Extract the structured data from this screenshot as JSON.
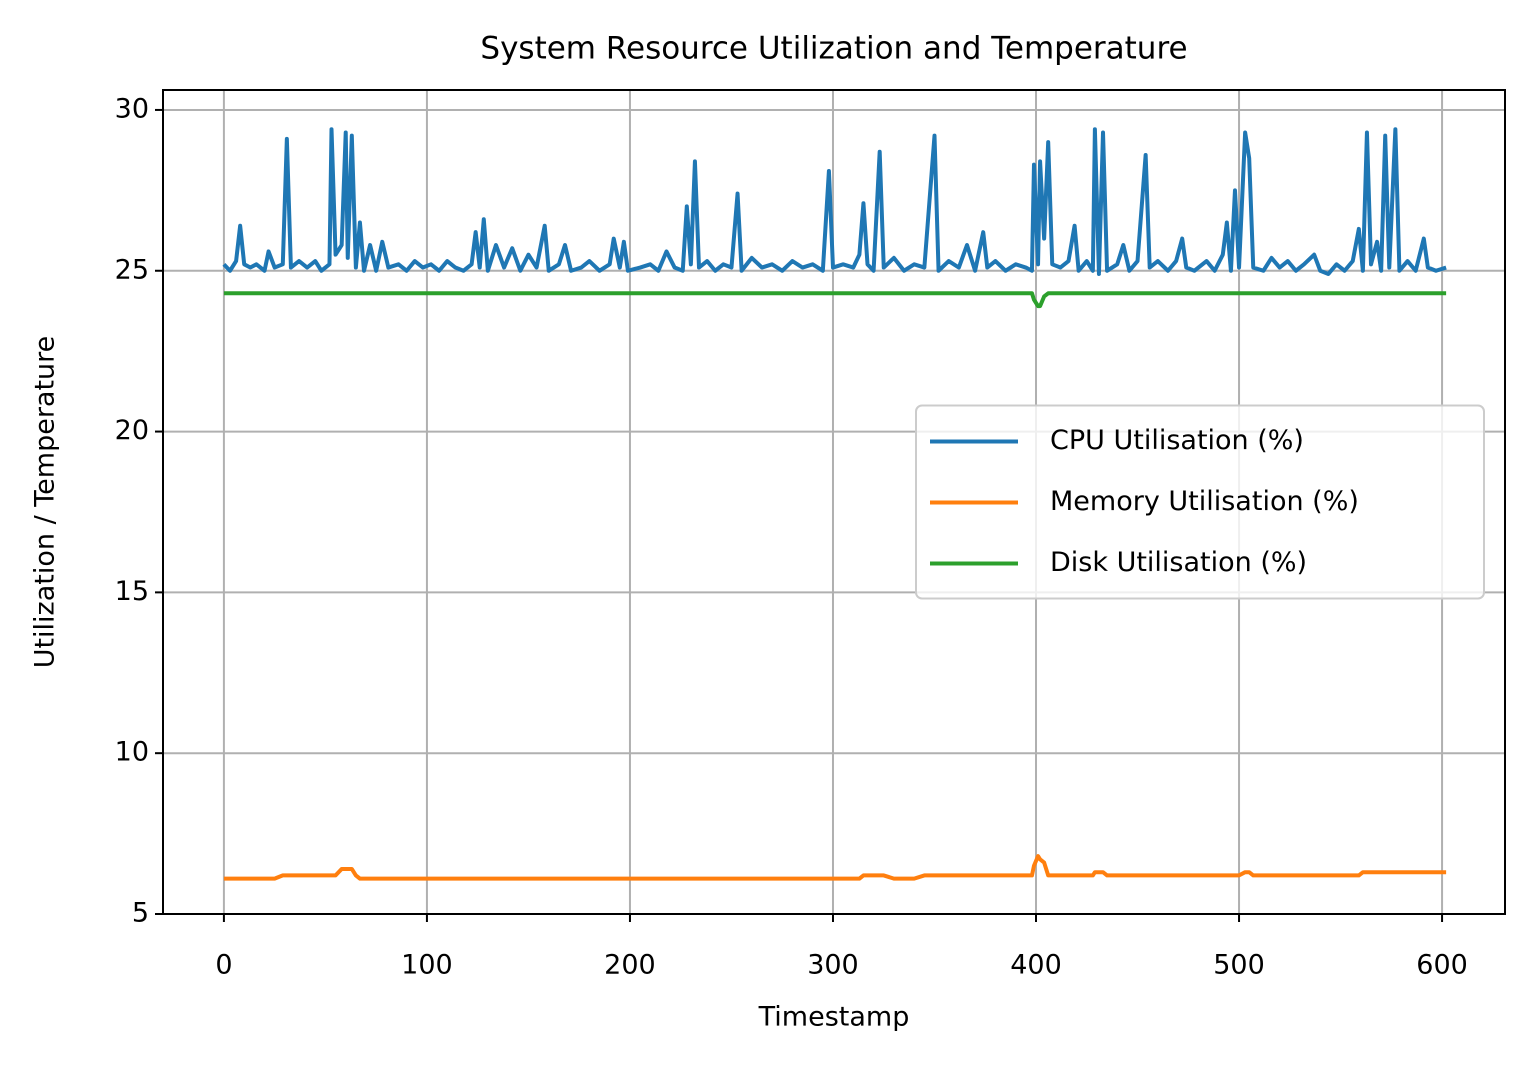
{
  "chart_data": {
    "type": "line",
    "title": "System Resource Utilization and Temperature",
    "xlabel": "Timestamp",
    "ylabel": "Utilization / Temperature",
    "x": [
      0,
      3,
      6,
      8,
      10,
      13,
      16,
      20,
      22,
      25,
      29,
      31,
      33,
      37,
      41,
      45,
      48,
      52,
      53,
      55,
      58,
      60,
      61,
      63,
      65,
      67,
      69,
      72,
      75,
      78,
      81,
      86,
      90,
      94,
      98,
      102,
      106,
      110,
      114,
      118,
      122,
      124,
      126,
      128,
      130,
      134,
      138,
      142,
      146,
      150,
      154,
      158,
      160,
      165,
      168,
      171,
      176,
      180,
      185,
      190,
      192,
      195,
      197,
      199,
      205,
      210,
      214,
      218,
      222,
      226,
      228,
      230,
      232,
      234,
      238,
      242,
      246,
      250,
      253,
      255,
      260,
      265,
      270,
      275,
      280,
      285,
      290,
      295,
      298,
      300,
      305,
      310,
      313,
      315,
      317,
      320,
      323,
      325,
      330,
      335,
      340,
      345,
      350,
      352,
      357,
      362,
      366,
      370,
      374,
      376,
      380,
      385,
      390,
      395,
      398,
      399,
      401,
      402,
      404,
      406,
      408,
      412,
      416,
      419,
      421,
      425,
      428,
      429,
      431,
      433,
      435,
      440,
      443,
      446,
      450,
      454,
      456,
      460,
      465,
      469,
      472,
      474,
      478,
      484,
      488,
      492,
      494,
      496,
      498,
      500,
      503,
      505,
      507,
      512,
      516,
      520,
      524,
      528,
      532,
      537,
      540,
      544,
      548,
      552,
      556,
      559,
      561,
      563,
      565,
      568,
      570,
      572,
      574,
      577,
      579,
      583,
      587,
      591,
      593,
      597,
      602
    ],
    "series": [
      {
        "name": "CPU Utilisation (%)",
        "color": "#1f77b4",
        "values": [
          25.2,
          25.0,
          25.3,
          26.4,
          25.2,
          25.1,
          25.2,
          25.0,
          25.6,
          25.1,
          25.2,
          29.1,
          25.1,
          25.3,
          25.1,
          25.3,
          25.0,
          25.2,
          29.4,
          25.5,
          25.8,
          29.3,
          25.4,
          29.2,
          25.1,
          26.5,
          25.0,
          25.8,
          25.0,
          25.9,
          25.1,
          25.2,
          25.0,
          25.3,
          25.1,
          25.2,
          25.0,
          25.3,
          25.1,
          25.0,
          25.2,
          26.2,
          25.1,
          26.6,
          25.0,
          25.8,
          25.1,
          25.7,
          25.0,
          25.5,
          25.1,
          26.4,
          25.0,
          25.2,
          25.8,
          25.0,
          25.1,
          25.3,
          25.0,
          25.2,
          26.0,
          25.1,
          25.9,
          25.0,
          25.1,
          25.2,
          25.0,
          25.6,
          25.1,
          25.0,
          27.0,
          25.2,
          28.4,
          25.1,
          25.3,
          25.0,
          25.2,
          25.1,
          27.4,
          25.0,
          25.4,
          25.1,
          25.2,
          25.0,
          25.3,
          25.1,
          25.2,
          25.0,
          28.1,
          25.1,
          25.2,
          25.1,
          25.5,
          27.1,
          25.2,
          25.0,
          28.7,
          25.1,
          25.4,
          25.0,
          25.2,
          25.1,
          29.2,
          25.0,
          25.3,
          25.1,
          25.8,
          25.0,
          26.2,
          25.1,
          25.3,
          25.0,
          25.2,
          25.1,
          25.0,
          28.3,
          25.2,
          28.4,
          26.0,
          29.0,
          25.2,
          25.1,
          25.3,
          26.4,
          25.0,
          25.3,
          25.0,
          29.4,
          24.9,
          29.3,
          25.0,
          25.2,
          25.8,
          25.0,
          25.3,
          28.6,
          25.1,
          25.3,
          25.0,
          25.3,
          26.0,
          25.1,
          25.0,
          25.3,
          25.0,
          25.5,
          26.5,
          25.0,
          27.5,
          25.1,
          29.3,
          28.5,
          25.1,
          25.0,
          25.4,
          25.1,
          25.3,
          25.0,
          25.2,
          25.5,
          25.0,
          24.9,
          25.2,
          25.0,
          25.3,
          26.3,
          25.0,
          29.3,
          25.2,
          25.9,
          25.0,
          29.2,
          25.1,
          29.4,
          25.0,
          25.3,
          25.0,
          26.0,
          25.1,
          25.0,
          25.1
        ]
      },
      {
        "name": "Memory Utilisation (%)",
        "color": "#ff7f0e",
        "values": [
          6.1,
          6.1,
          6.1,
          6.1,
          6.1,
          6.1,
          6.1,
          6.1,
          6.1,
          6.1,
          6.2,
          6.2,
          6.2,
          6.2,
          6.2,
          6.2,
          6.2,
          6.2,
          6.2,
          6.2,
          6.4,
          6.4,
          6.4,
          6.4,
          6.2,
          6.1,
          6.1,
          6.1,
          6.1,
          6.1,
          6.1,
          6.1,
          6.1,
          6.1,
          6.1,
          6.1,
          6.1,
          6.1,
          6.1,
          6.1,
          6.1,
          6.1,
          6.1,
          6.1,
          6.1,
          6.1,
          6.1,
          6.1,
          6.1,
          6.1,
          6.1,
          6.1,
          6.1,
          6.1,
          6.1,
          6.1,
          6.1,
          6.1,
          6.1,
          6.1,
          6.1,
          6.1,
          6.1,
          6.1,
          6.1,
          6.1,
          6.1,
          6.1,
          6.1,
          6.1,
          6.1,
          6.1,
          6.1,
          6.1,
          6.1,
          6.1,
          6.1,
          6.1,
          6.1,
          6.1,
          6.1,
          6.1,
          6.1,
          6.1,
          6.1,
          6.1,
          6.1,
          6.1,
          6.1,
          6.1,
          6.1,
          6.1,
          6.1,
          6.2,
          6.2,
          6.2,
          6.2,
          6.2,
          6.1,
          6.1,
          6.1,
          6.2,
          6.2,
          6.2,
          6.2,
          6.2,
          6.2,
          6.2,
          6.2,
          6.2,
          6.2,
          6.2,
          6.2,
          6.2,
          6.2,
          6.5,
          6.8,
          6.7,
          6.6,
          6.2,
          6.2,
          6.2,
          6.2,
          6.2,
          6.2,
          6.2,
          6.2,
          6.3,
          6.3,
          6.3,
          6.2,
          6.2,
          6.2,
          6.2,
          6.2,
          6.2,
          6.2,
          6.2,
          6.2,
          6.2,
          6.2,
          6.2,
          6.2,
          6.2,
          6.2,
          6.2,
          6.2,
          6.2,
          6.2,
          6.2,
          6.3,
          6.3,
          6.2,
          6.2,
          6.2,
          6.2,
          6.2,
          6.2,
          6.2,
          6.2,
          6.2,
          6.2,
          6.2,
          6.2,
          6.2,
          6.2,
          6.3,
          6.3,
          6.3,
          6.3,
          6.3,
          6.3,
          6.3,
          6.3,
          6.3,
          6.3,
          6.3,
          6.3,
          6.3,
          6.3,
          6.3
        ]
      },
      {
        "name": "Disk Utilisation (%)",
        "color": "#2ca02c",
        "values": [
          24.3,
          24.3,
          24.3,
          24.3,
          24.3,
          24.3,
          24.3,
          24.3,
          24.3,
          24.3,
          24.3,
          24.3,
          24.3,
          24.3,
          24.3,
          24.3,
          24.3,
          24.3,
          24.3,
          24.3,
          24.3,
          24.3,
          24.3,
          24.3,
          24.3,
          24.3,
          24.3,
          24.3,
          24.3,
          24.3,
          24.3,
          24.3,
          24.3,
          24.3,
          24.3,
          24.3,
          24.3,
          24.3,
          24.3,
          24.3,
          24.3,
          24.3,
          24.3,
          24.3,
          24.3,
          24.3,
          24.3,
          24.3,
          24.3,
          24.3,
          24.3,
          24.3,
          24.3,
          24.3,
          24.3,
          24.3,
          24.3,
          24.3,
          24.3,
          24.3,
          24.3,
          24.3,
          24.3,
          24.3,
          24.3,
          24.3,
          24.3,
          24.3,
          24.3,
          24.3,
          24.3,
          24.3,
          24.3,
          24.3,
          24.3,
          24.3,
          24.3,
          24.3,
          24.3,
          24.3,
          24.3,
          24.3,
          24.3,
          24.3,
          24.3,
          24.3,
          24.3,
          24.3,
          24.3,
          24.3,
          24.3,
          24.3,
          24.3,
          24.3,
          24.3,
          24.3,
          24.3,
          24.3,
          24.3,
          24.3,
          24.3,
          24.3,
          24.3,
          24.3,
          24.3,
          24.3,
          24.3,
          24.3,
          24.3,
          24.3,
          24.3,
          24.3,
          24.3,
          24.3,
          24.3,
          24.1,
          23.9,
          23.9,
          24.2,
          24.3,
          24.3,
          24.3,
          24.3,
          24.3,
          24.3,
          24.3,
          24.3,
          24.3,
          24.3,
          24.3,
          24.3,
          24.3,
          24.3,
          24.3,
          24.3,
          24.3,
          24.3,
          24.3,
          24.3,
          24.3,
          24.3,
          24.3,
          24.3,
          24.3,
          24.3,
          24.3,
          24.3,
          24.3,
          24.3,
          24.3,
          24.3,
          24.3,
          24.3,
          24.3,
          24.3,
          24.3,
          24.3,
          24.3,
          24.3,
          24.3,
          24.3,
          24.3,
          24.3,
          24.3,
          24.3,
          24.3,
          24.3,
          24.3,
          24.3,
          24.3,
          24.3,
          24.3,
          24.3,
          24.3,
          24.3,
          24.3,
          24.3,
          24.3,
          24.3,
          24.3,
          24.3
        ]
      }
    ],
    "xlim": [
      -30,
      631
    ],
    "ylim": [
      5,
      30.62
    ],
    "xticks": [
      0,
      100,
      200,
      300,
      400,
      500,
      600
    ],
    "yticks": [
      5,
      10,
      15,
      20,
      25,
      30
    ],
    "grid": true,
    "legend": "center right"
  }
}
